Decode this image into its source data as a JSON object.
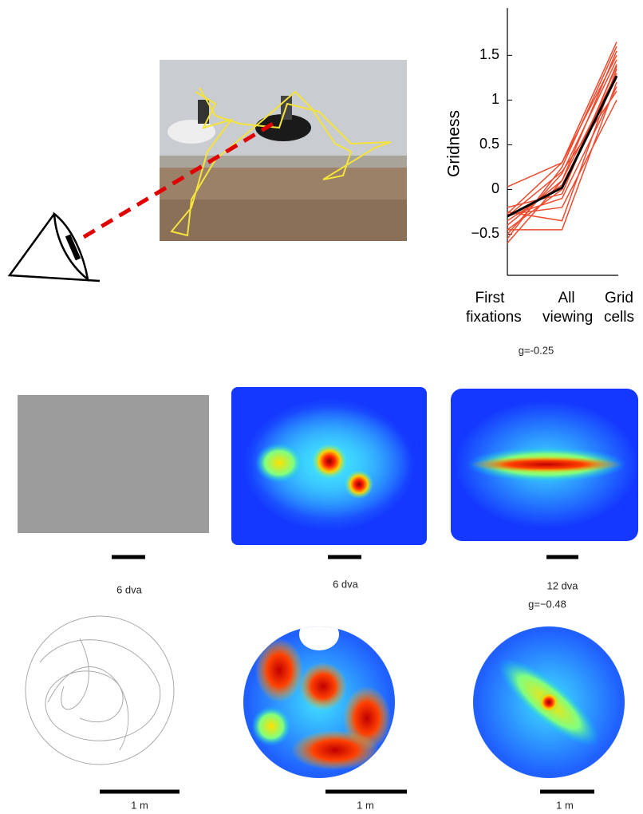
{
  "chart_data": {
    "type": "line",
    "categories": [
      "First fixations",
      "All viewing",
      "Grid cells"
    ],
    "ylabel": "Gridness",
    "ylim": [
      -0.96,
      2.03
    ],
    "yticks": [
      {
        "value": -0.5,
        "label": "−0.5"
      },
      0,
      0.5,
      1,
      1.5
    ],
    "series": [
      {
        "color": "#ee4a2e",
        "values": [
          -0.27,
          0.3,
          1.65
        ]
      },
      {
        "color": "#ee4a2e",
        "values": [
          -0.6,
          0.1,
          1.55
        ]
      },
      {
        "color": "#ee4a2e",
        "values": [
          0.03,
          0.3,
          1.5
        ]
      },
      {
        "color": "#ee4a2e",
        "values": [
          -0.45,
          -0.45,
          1.2
        ]
      },
      {
        "color": "#ee4a2e",
        "values": [
          -0.25,
          -0.35,
          1.35
        ]
      },
      {
        "color": "#ee4a2e",
        "values": [
          -0.5,
          0.18,
          1.45
        ]
      },
      {
        "color": "#ee4a2e",
        "values": [
          -0.3,
          0.2,
          1.1
        ]
      },
      {
        "color": "#ee4a2e",
        "values": [
          -0.35,
          0.05,
          1.25
        ]
      },
      {
        "color": "#ee4a2e",
        "values": [
          -0.2,
          -0.05,
          1.4
        ]
      },
      {
        "color": "#ee4a2e",
        "values": [
          -0.4,
          0.1,
          1.3
        ]
      },
      {
        "color": "#ee4a2e",
        "values": [
          -0.28,
          -0.2,
          1.0
        ]
      },
      {
        "color": "#ee4a2e",
        "values": [
          -0.55,
          0.25,
          1.6
        ]
      },
      {
        "color": "#ee4a2e",
        "values": [
          -0.3,
          -0.1,
          1.15
        ]
      },
      {
        "color": "#ee4a2e",
        "values": [
          -0.45,
          0.0,
          1.38
        ]
      },
      {
        "color": "#000000",
        "values": [
          -0.3,
          0.02,
          1.27
        ]
      }
    ]
  },
  "labels": {
    "g_top": "g=-0.25",
    "scale_row1": [
      "6 dva",
      "6 dva",
      "12 dva"
    ],
    "g_bottom": "g=−0.48",
    "scale_row2": [
      "1 m",
      "1 m",
      "1 m"
    ]
  }
}
